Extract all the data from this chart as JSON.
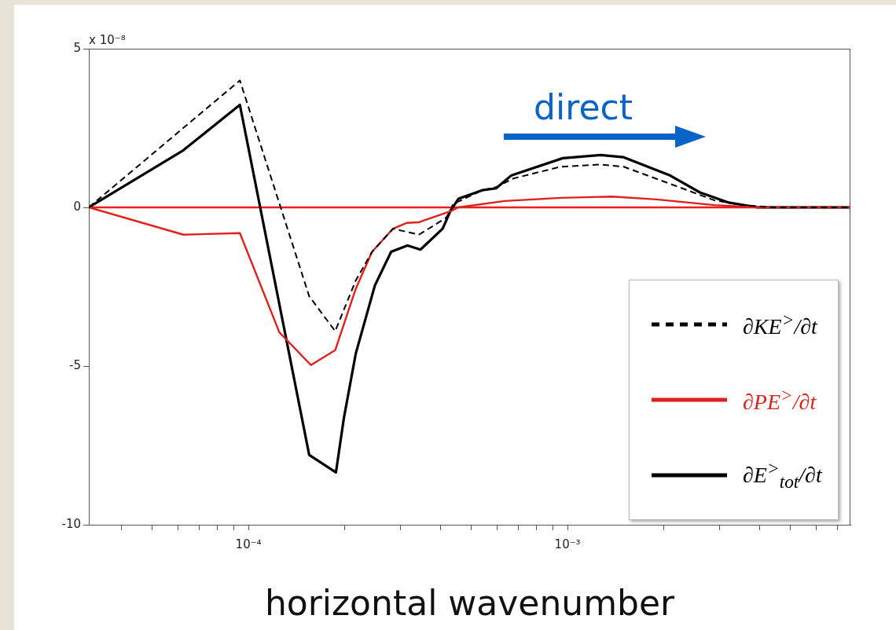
{
  "chart_data": {
    "type": "line",
    "xlabel": "horizontal wavenumber",
    "log": "x",
    "marker": "none",
    "legend": "bottom right",
    "xlim": [
      3.16e-05,
      0.0077
    ],
    "xticks": [
      {
        "value": 4e-05,
        "label": null
      },
      {
        "value": 5e-05,
        "label": null
      },
      {
        "value": 6e-05,
        "label": null
      },
      {
        "value": 7e-05,
        "label": null
      },
      {
        "value": 8e-05,
        "label": null
      },
      {
        "value": 9e-05,
        "label": null
      },
      {
        "value": 0.0001,
        "label": "10⁻⁴"
      },
      {
        "value": 0.0002,
        "label": null
      },
      {
        "value": 0.0003,
        "label": null
      },
      {
        "value": 0.0004,
        "label": null
      },
      {
        "value": 0.0005,
        "label": null
      },
      {
        "value": 0.0006,
        "label": null
      },
      {
        "value": 0.0007,
        "label": null
      },
      {
        "value": 0.0008,
        "label": null
      },
      {
        "value": 0.0009,
        "label": null
      },
      {
        "value": 0.001,
        "label": "10⁻³"
      },
      {
        "value": 0.002,
        "label": null
      },
      {
        "value": 0.003,
        "label": null
      },
      {
        "value": 0.004,
        "label": null
      },
      {
        "value": 0.005,
        "label": null
      },
      {
        "value": 0.006,
        "label": null
      },
      {
        "value": 0.007,
        "label": null
      }
    ],
    "ylim": [
      -10,
      5
    ],
    "yticks": [
      -10,
      -5,
      0,
      5
    ],
    "annotations": [
      "x 10⁻⁸",
      "direct"
    ],
    "ref_lines": [
      {
        "axis": "y",
        "value": 0,
        "color": "#ee1c1c"
      }
    ],
    "series": [
      {
        "name": "∂KE$^{>}$/∂t",
        "color": "#000000",
        "line_style": "dashed",
        "x": [
          3.16e-05,
          9.4e-05,
          0.000155,
          0.000187,
          0.000217,
          0.000244,
          0.000284,
          0.000342,
          0.000415,
          0.00043,
          0.000437,
          0.00054,
          0.000597,
          0.000676,
          0.00095,
          0.00127,
          0.0015,
          0.0021,
          0.00289,
          0.00356,
          0.0044,
          0.0077
        ],
        "values": [
          0,
          4.0,
          -2.8,
          -3.9,
          -2.3,
          -1.4,
          -0.67,
          -0.86,
          -0.34,
          -0.1,
          0.1,
          0.54,
          0.64,
          0.91,
          1.28,
          1.35,
          1.28,
          0.74,
          0.22,
          0.07,
          0,
          0
        ]
      },
      {
        "name": "∂PE$^{>}$/∂t",
        "color": "#e0201b",
        "line_style": "solid",
        "x": [
          3.16e-05,
          6.25e-05,
          9.4e-05,
          0.000125,
          0.000157,
          0.000187,
          0.000217,
          0.000244,
          0.000284,
          0.000313,
          0.000342,
          0.00043,
          0.000455,
          0.000635,
          0.00095,
          0.00138,
          0.0019,
          0.00289,
          0.00394,
          0.0077
        ],
        "values": [
          0,
          -0.86,
          -0.81,
          -3.94,
          -4.97,
          -4.5,
          -2.56,
          -1.4,
          -0.67,
          -0.49,
          -0.47,
          -0.12,
          0,
          0.2,
          0.3,
          0.34,
          0.25,
          0.07,
          0,
          0
        ]
      },
      {
        "name": "∂E$^{>}$$_{tot}$/∂t",
        "color": "#000000",
        "line_style": "solid",
        "x": [
          3.16e-05,
          6.25e-05,
          9.4e-05,
          0.000155,
          0.000188,
          0.000199,
          0.000217,
          0.000249,
          0.00028,
          0.000315,
          0.000346,
          0.000406,
          0.00043,
          0.000455,
          0.00054,
          0.000597,
          0.000665,
          0.000966,
          0.00127,
          0.0015,
          0.0021,
          0.0026,
          0.0032,
          0.00394,
          0.0077
        ],
        "values": [
          0,
          1.8,
          3.23,
          -7.8,
          -8.35,
          -6.65,
          -4.6,
          -2.46,
          -1.4,
          -1.2,
          -1.33,
          -0.67,
          -0.1,
          0.27,
          0.54,
          0.6,
          1.0,
          1.55,
          1.65,
          1.58,
          1.0,
          0.47,
          0.15,
          0,
          0
        ]
      }
    ]
  }
}
